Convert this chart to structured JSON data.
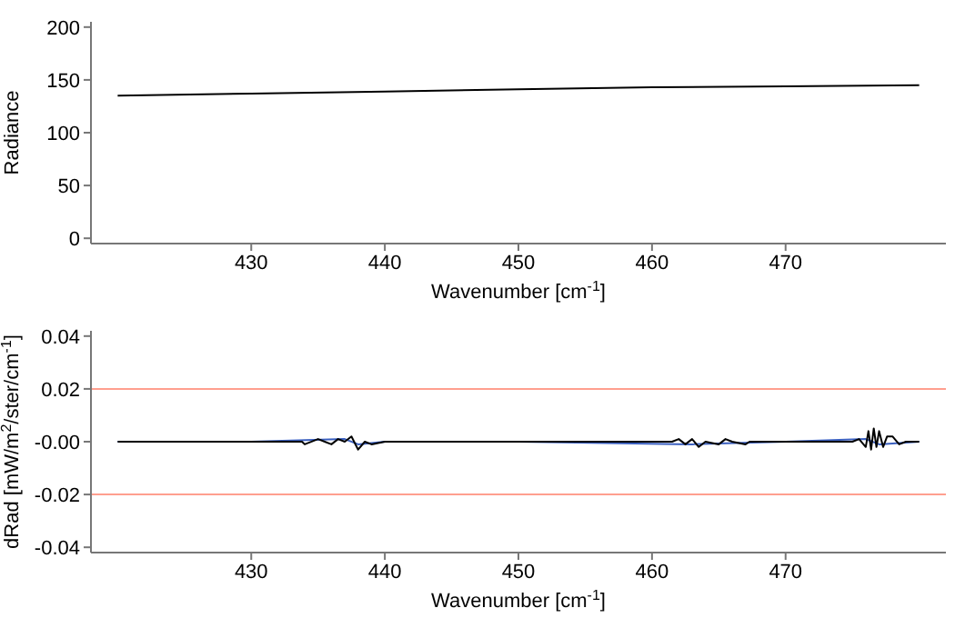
{
  "chart_data": [
    {
      "type": "line",
      "xlabel": "Wavenumber [cm$^{-1}$]",
      "ylabel": "Radiance",
      "xlim": [
        418,
        482
      ],
      "xticks": [
        430,
        440,
        450,
        460,
        470
      ],
      "ylim": [
        -5,
        205
      ],
      "yticks": [
        0,
        50,
        100,
        150,
        200
      ],
      "grid": false,
      "marker": "none",
      "series": [
        {
          "color": "#000000",
          "x": [
            420,
            430,
            440,
            450,
            460,
            470,
            480
          ],
          "values": [
            135,
            137,
            139,
            141,
            143,
            144,
            145
          ]
        }
      ]
    },
    {
      "type": "line",
      "xlabel": "Wavenumber [cm$^{-1}$]",
      "ylabel": "dRad [mW/m$^{2}$/ster/cm$^{-1}$]",
      "xlim": [
        418,
        482
      ],
      "xticks": [
        430,
        440,
        450,
        460,
        470
      ],
      "ylim": [
        -0.042,
        0.042
      ],
      "yticks": [
        {
          "value": -0.04,
          "label": "-0.04"
        },
        {
          "value": -0.02,
          "label": "-0.02"
        },
        {
          "value": 0,
          "label": "-0.00"
        },
        {
          "value": 0.02,
          "label": "0.02"
        },
        {
          "value": 0.04,
          "label": "0.04"
        }
      ],
      "grid": false,
      "marker": "none",
      "ref_lines": [
        {
          "axis": "y",
          "value": 0.02,
          "color": "#ff9f8f"
        },
        {
          "axis": "y",
          "value": -0.02,
          "color": "#ff9f8f"
        }
      ],
      "series": [
        {
          "color": "#3a5fbf",
          "x": [
            420,
            430,
            437,
            438,
            440,
            450,
            463,
            470,
            476,
            477,
            480
          ],
          "values": [
            0,
            0,
            0.001,
            -0.001,
            0,
            0,
            -0.001,
            0,
            0.001,
            -0.001,
            0
          ]
        },
        {
          "color": "#000000",
          "x": [
            420,
            425,
            430,
            433.8,
            434,
            435,
            435.5,
            436,
            436.5,
            437,
            437.5,
            438,
            438.5,
            439,
            440,
            445,
            450,
            455,
            460,
            461.5,
            462,
            462.5,
            463,
            463.5,
            464,
            465,
            465.5,
            466,
            467,
            467.3,
            470,
            475,
            475.5,
            476,
            476.2,
            476.4,
            476.6,
            476.8,
            477,
            477.3,
            477.6,
            478,
            478.5,
            479,
            480
          ],
          "values": [
            0,
            0,
            0,
            0,
            -0.001,
            0.001,
            0,
            -0.001,
            0.001,
            0,
            0.002,
            -0.003,
            0,
            -0.001,
            0,
            0,
            0,
            0,
            0,
            0,
            0.001,
            -0.001,
            0.001,
            -0.002,
            0,
            -0.001,
            0.001,
            0,
            -0.001,
            0,
            0,
            0,
            0.001,
            -0.002,
            0.004,
            -0.003,
            0.005,
            -0.002,
            0.004,
            -0.002,
            0.002,
            0.002,
            -0.001,
            0,
            0
          ]
        }
      ]
    }
  ]
}
